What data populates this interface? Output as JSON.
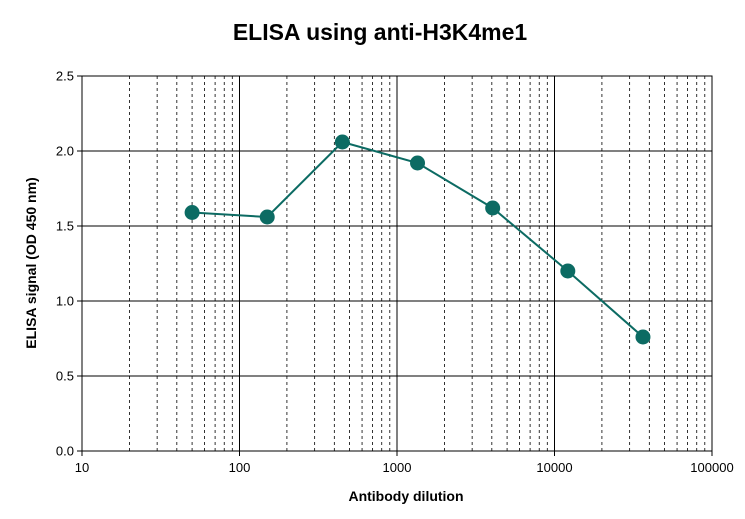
{
  "chart_data": {
    "type": "line",
    "title": "ELISA using anti-H3K4me1",
    "xlabel": "Antibody dilution",
    "ylabel": "ELISA signal (OD 450 nm)",
    "x_scale": "log",
    "xlim": [
      10,
      100000
    ],
    "ylim": [
      0,
      2.5
    ],
    "x_ticks": [
      10,
      100,
      1000,
      10000,
      100000
    ],
    "x_tick_labels": [
      "10",
      "100",
      "1000",
      "10000",
      "100000"
    ],
    "y_ticks": [
      0,
      0.5,
      1,
      1.5,
      2,
      2.5
    ],
    "y_tick_labels": [
      "0.0",
      "0.5",
      "1.0",
      "1.5",
      "2.0",
      "2.5"
    ],
    "grid": true,
    "legend": "none",
    "series": [
      {
        "x": [
          50,
          150,
          450,
          1350,
          4050,
          12150,
          36450
        ],
        "y": [
          1.59,
          1.56,
          2.06,
          1.92,
          1.62,
          1.2,
          0.76
        ],
        "color": "#0c6b63",
        "marker": "circle"
      }
    ]
  }
}
